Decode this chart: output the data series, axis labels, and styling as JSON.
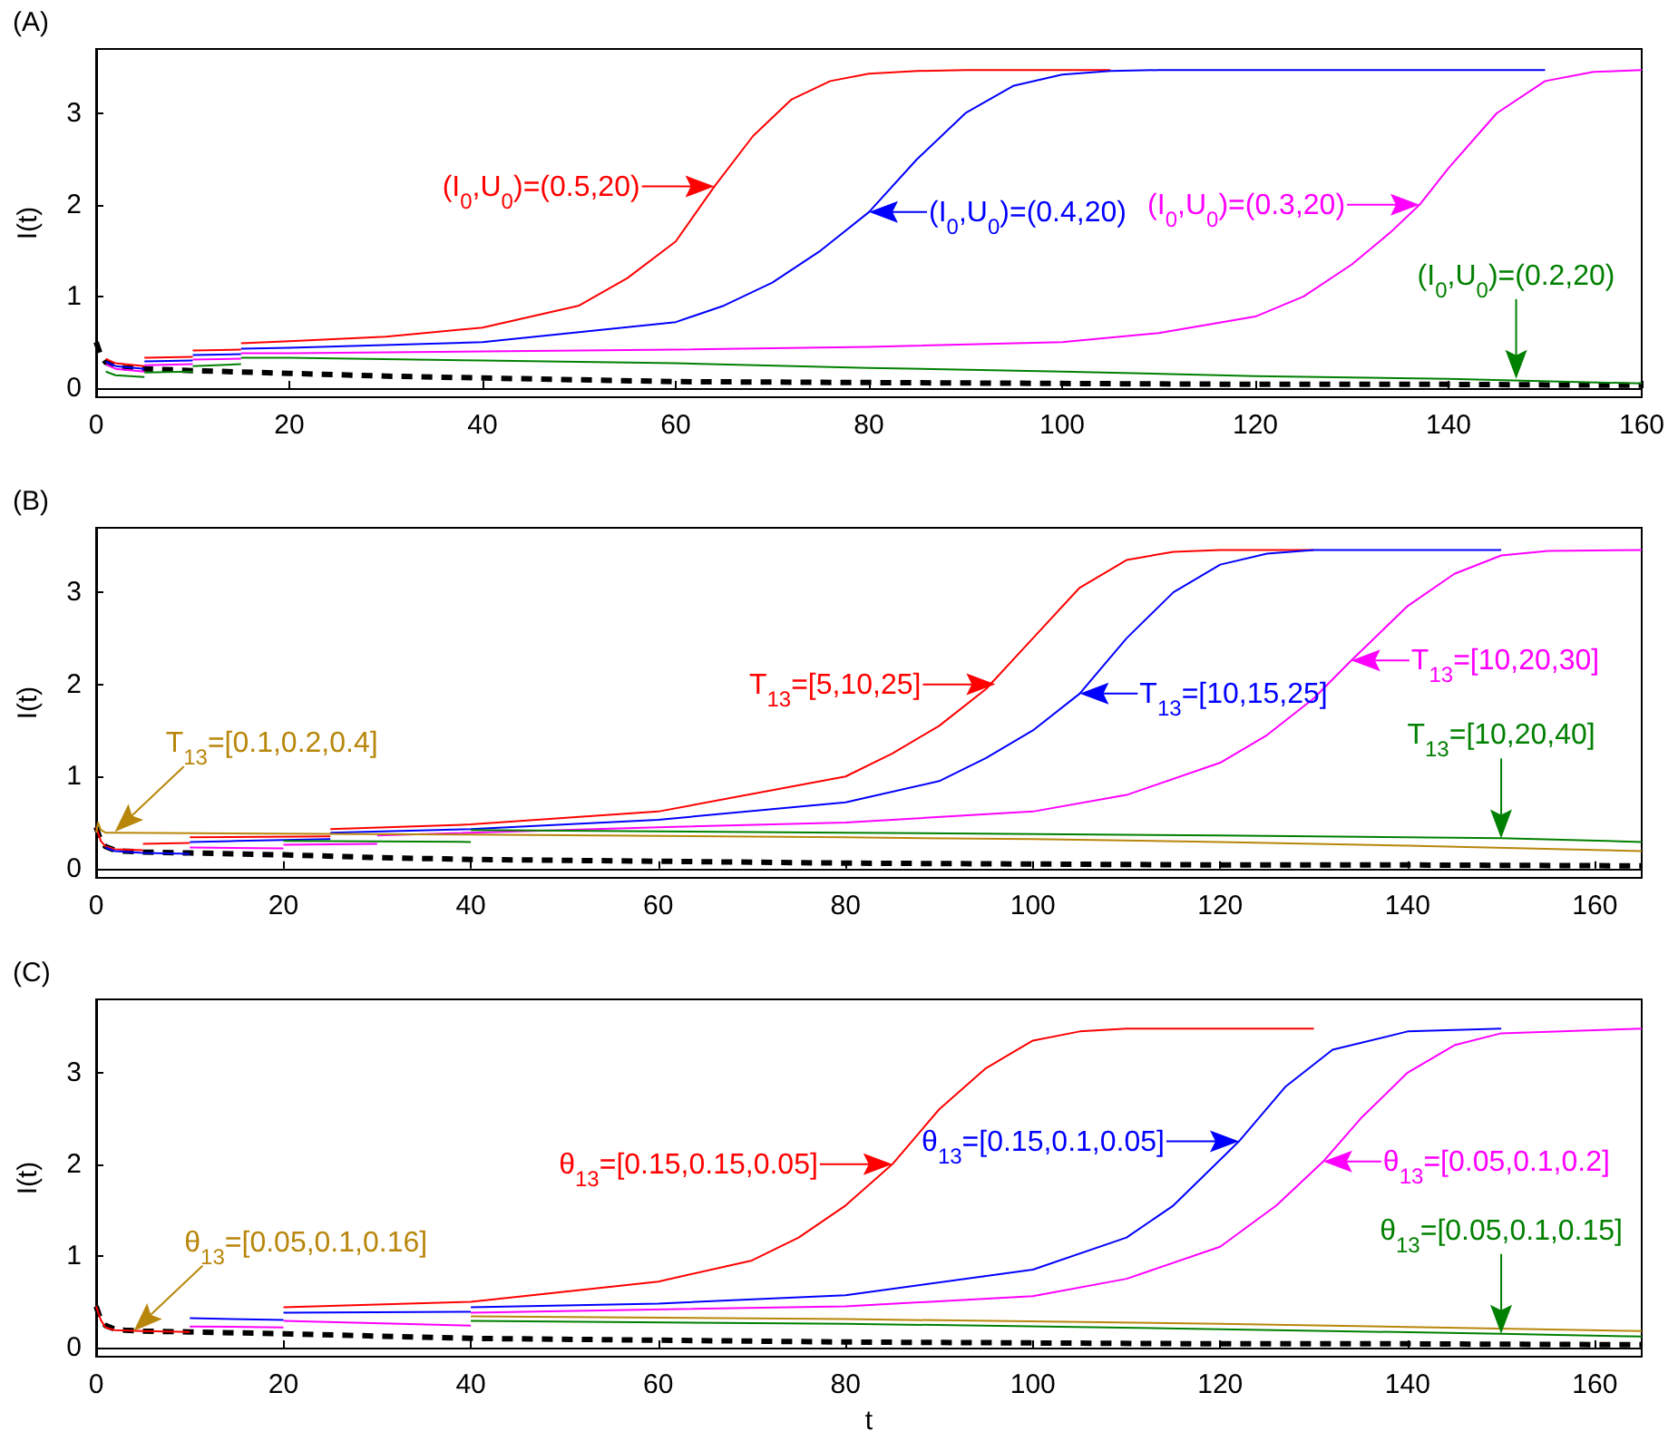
{
  "chart_data": [
    {
      "type": "line",
      "title": "(A)",
      "ylabel": "I(t)",
      "xlim": [
        0,
        160
      ],
      "ylim": [
        -0.1,
        3.7
      ],
      "xticks": [
        0,
        20,
        40,
        60,
        80,
        100,
        120,
        140,
        160
      ],
      "yticks": [
        0,
        1,
        2,
        3
      ],
      "series": [
        {
          "color": "#000000",
          "line_style": "dashed",
          "x": [
            0,
            0.5,
            1,
            2,
            3,
            5,
            10,
            20,
            30,
            40,
            50,
            60,
            80,
            100,
            120,
            140,
            160
          ],
          "values": [
            0.5,
            0.35,
            0.28,
            0.24,
            0.22,
            0.21,
            0.19,
            0.16,
            0.13,
            0.11,
            0.09,
            0.07,
            0.06,
            0.05,
            0.04,
            0.04,
            0.03
          ]
        },
        {
          "color": "#ff0000",
          "x": [
            1,
            2,
            5
          ],
          "values": [
            0.32,
            0.27,
            0.24
          ]
        },
        {
          "color": "#ff0000",
          "x": [
            5,
            10
          ],
          "values": [
            0.33,
            0.34
          ]
        },
        {
          "color": "#ff0000",
          "x": [
            10,
            15
          ],
          "values": [
            0.41,
            0.42
          ]
        },
        {
          "color": "#ff0000",
          "x": [
            15,
            20,
            30,
            40,
            50,
            55,
            60,
            64,
            68,
            72,
            76,
            80,
            85,
            90,
            100,
            105
          ],
          "values": [
            0.49,
            0.51,
            0.56,
            0.66,
            0.9,
            1.2,
            1.6,
            2.2,
            2.75,
            3.15,
            3.35,
            3.43,
            3.46,
            3.47,
            3.47,
            3.47
          ]
        },
        {
          "color": "#0000ff",
          "x": [
            1,
            2,
            5
          ],
          "values": [
            0.29,
            0.24,
            0.21
          ]
        },
        {
          "color": "#0000ff",
          "x": [
            5,
            10
          ],
          "values": [
            0.29,
            0.3
          ]
        },
        {
          "color": "#0000ff",
          "x": [
            10,
            15
          ],
          "values": [
            0.36,
            0.37
          ]
        },
        {
          "color": "#0000ff",
          "x": [
            15,
            20,
            40,
            60,
            65,
            70,
            75,
            80,
            85,
            90,
            95,
            100,
            105,
            110,
            150
          ],
          "values": [
            0.43,
            0.44,
            0.5,
            0.72,
            0.9,
            1.15,
            1.5,
            1.92,
            2.5,
            3.0,
            3.3,
            3.42,
            3.46,
            3.47,
            3.47
          ]
        },
        {
          "color": "#ff00ff",
          "x": [
            1,
            2,
            5
          ],
          "values": [
            0.26,
            0.21,
            0.18
          ]
        },
        {
          "color": "#ff00ff",
          "x": [
            5,
            10
          ],
          "values": [
            0.25,
            0.26
          ]
        },
        {
          "color": "#ff00ff",
          "x": [
            10,
            15
          ],
          "values": [
            0.31,
            0.32
          ]
        },
        {
          "color": "#ff00ff",
          "x": [
            15,
            20,
            40,
            60,
            80,
            100,
            110,
            120,
            125,
            130,
            134,
            137,
            140,
            145,
            150,
            155,
            160
          ],
          "values": [
            0.38,
            0.38,
            0.4,
            0.42,
            0.45,
            0.5,
            0.6,
            0.78,
            1.0,
            1.35,
            1.7,
            2.0,
            2.4,
            3.0,
            3.35,
            3.45,
            3.47
          ]
        },
        {
          "color": "#008000",
          "x": [
            1,
            2,
            5
          ],
          "values": [
            0.18,
            0.14,
            0.12
          ]
        },
        {
          "color": "#008000",
          "x": [
            5,
            10
          ],
          "values": [
            0.17,
            0.18
          ]
        },
        {
          "color": "#008000",
          "x": [
            10,
            15
          ],
          "values": [
            0.24,
            0.26
          ]
        },
        {
          "color": "#008000",
          "x": [
            15,
            20,
            40,
            60,
            80,
            100,
            120,
            140,
            160
          ],
          "values": [
            0.33,
            0.33,
            0.3,
            0.27,
            0.22,
            0.18,
            0.13,
            0.1,
            0.05
          ]
        }
      ],
      "annotations": [
        {
          "text": "(I$_{0}$,U$_{0}$)=(0.5,20)",
          "x": 64,
          "y": 2.2
        },
        {
          "text": "(I$_{0}$,U$_{0}$)=(0.4,20)",
          "x": 80,
          "y": 1.92
        },
        {
          "text": "(I$_{0}$,U$_{0}$)=(0.3,20)",
          "x": 137,
          "y": 2.0
        },
        {
          "text": "(I$_{0}$,U$_{0}$)=(0.2,20)",
          "x": 147,
          "y": 0.1
        }
      ]
    },
    {
      "type": "line",
      "title": "(B)",
      "ylabel": "I(t)",
      "xlim": [
        0,
        165
      ],
      "ylim": [
        -0.1,
        3.7
      ],
      "xticks": [
        0,
        20,
        40,
        60,
        80,
        100,
        120,
        140,
        160
      ],
      "yticks": [
        0,
        1,
        2,
        3
      ],
      "series": [
        {
          "color": "#000000",
          "line_style": "dashed",
          "x": [
            0,
            0.5,
            1,
            2,
            3,
            5,
            10,
            20,
            30,
            40,
            60,
            80,
            100,
            120,
            140,
            165
          ],
          "values": [
            0.45,
            0.3,
            0.24,
            0.2,
            0.19,
            0.18,
            0.17,
            0.15,
            0.12,
            0.1,
            0.08,
            0.06,
            0.05,
            0.04,
            0.04,
            0.03
          ]
        },
        {
          "color": "#ff0000",
          "x": [
            0,
            0.5,
            1,
            2,
            5
          ],
          "values": [
            0.45,
            0.3,
            0.24,
            0.21,
            0.2
          ]
        },
        {
          "color": "#ff0000",
          "x": [
            5,
            10
          ],
          "values": [
            0.27,
            0.28
          ]
        },
        {
          "color": "#ff0000",
          "x": [
            10,
            25
          ],
          "values": [
            0.34,
            0.35
          ]
        },
        {
          "color": "#ff0000",
          "x": [
            25,
            40,
            60,
            80,
            85,
            90,
            95,
            100,
            105,
            110,
            115,
            120,
            130
          ],
          "values": [
            0.43,
            0.48,
            0.62,
            1.0,
            1.25,
            1.55,
            1.95,
            2.5,
            3.05,
            3.35,
            3.44,
            3.46,
            3.46
          ]
        },
        {
          "color": "#0000ff",
          "x": [
            1,
            2,
            5,
            10
          ],
          "values": [
            0.23,
            0.19,
            0.17,
            0.16
          ]
        },
        {
          "color": "#0000ff",
          "x": [
            10,
            15,
            25
          ],
          "values": [
            0.29,
            0.3,
            0.32
          ]
        },
        {
          "color": "#0000ff",
          "x": [
            25,
            40,
            60,
            80,
            90,
            95,
            100,
            105,
            110,
            115,
            120,
            125,
            130,
            150
          ],
          "values": [
            0.39,
            0.43,
            0.53,
            0.72,
            0.95,
            1.2,
            1.5,
            1.9,
            2.5,
            3.0,
            3.3,
            3.42,
            3.46,
            3.46
          ]
        },
        {
          "color": "#ff00ff",
          "x": [
            10,
            20
          ],
          "values": [
            0.23,
            0.22
          ]
        },
        {
          "color": "#ff00ff",
          "x": [
            20,
            30
          ],
          "values": [
            0.26,
            0.27
          ]
        },
        {
          "color": "#ff00ff",
          "x": [
            30,
            60,
            80,
            100,
            110,
            120,
            125,
            130,
            134,
            140,
            145,
            150,
            155,
            165
          ],
          "values": [
            0.36,
            0.45,
            0.5,
            0.62,
            0.8,
            1.15,
            1.45,
            1.85,
            2.26,
            2.85,
            3.2,
            3.4,
            3.45,
            3.46
          ]
        },
        {
          "color": "#008000",
          "x": [
            20,
            40
          ],
          "values": [
            0.3,
            0.29
          ]
        },
        {
          "color": "#008000",
          "x": [
            40,
            80,
            120,
            150,
            165
          ],
          "values": [
            0.42,
            0.39,
            0.36,
            0.33,
            0.29
          ]
        },
        {
          "color": "#b8860b",
          "x": [
            0,
            0.2,
            0.5,
            1,
            2,
            40,
            80,
            100,
            120,
            140,
            165
          ],
          "values": [
            0.39,
            0.5,
            0.42,
            0.39,
            0.39,
            0.37,
            0.34,
            0.32,
            0.29,
            0.25,
            0.19
          ]
        }
      ],
      "annotations": [
        {
          "text": "T$_{13}$=[5,10,25]",
          "x": 96,
          "y": 2.0
        },
        {
          "text": "T$_{13}$=[10,15,25]",
          "x": 105,
          "y": 1.9
        },
        {
          "text": "T$_{13}$=[10,20,30]",
          "x": 134,
          "y": 2.26
        },
        {
          "text": "T$_{13}$=[10,20,40]",
          "x": 150,
          "y": 0.33
        },
        {
          "text": "T$_{13}$=[0.1,0.2,0.4]",
          "x": 2,
          "y": 0.4
        }
      ]
    },
    {
      "type": "line",
      "title": "(C)",
      "ylabel": "I(t)",
      "xlabel": "t",
      "xlim": [
        0,
        165
      ],
      "ylim": [
        -0.1,
        3.8
      ],
      "xticks": [
        0,
        20,
        40,
        60,
        80,
        100,
        120,
        140,
        160
      ],
      "yticks": [
        0,
        1,
        2,
        3
      ],
      "series": [
        {
          "color": "#000000",
          "line_style": "dashed",
          "x": [
            0,
            0.5,
            1,
            2,
            3,
            5,
            10,
            20,
            40,
            60,
            80,
            100,
            120,
            140,
            165
          ],
          "values": [
            0.45,
            0.3,
            0.24,
            0.2,
            0.19,
            0.18,
            0.17,
            0.15,
            0.1,
            0.08,
            0.06,
            0.05,
            0.04,
            0.04,
            0.03
          ]
        },
        {
          "color": "#ff0000",
          "x": [
            0,
            0.5,
            1,
            2,
            5,
            10
          ],
          "values": [
            0.45,
            0.3,
            0.22,
            0.19,
            0.18,
            0.17
          ]
        },
        {
          "color": "#ff0000",
          "x": [
            20,
            40,
            60,
            70,
            75,
            80,
            85,
            90,
            95,
            100,
            105,
            110,
            130
          ],
          "values": [
            0.44,
            0.5,
            0.72,
            0.95,
            1.2,
            1.55,
            2.0,
            2.6,
            3.05,
            3.35,
            3.45,
            3.48,
            3.48
          ]
        },
        {
          "color": "#0000ff",
          "x": [
            10,
            20
          ],
          "values": [
            0.32,
            0.3
          ]
        },
        {
          "color": "#0000ff",
          "x": [
            20,
            40
          ],
          "values": [
            0.38,
            0.39
          ]
        },
        {
          "color": "#0000ff",
          "x": [
            40,
            60,
            80,
            100,
            110,
            115,
            118,
            122,
            127,
            132,
            140,
            150
          ],
          "values": [
            0.44,
            0.48,
            0.57,
            0.85,
            1.2,
            1.55,
            1.85,
            2.25,
            2.85,
            3.25,
            3.45,
            3.48
          ]
        },
        {
          "color": "#ff00ff",
          "x": [
            10,
            20
          ],
          "values": [
            0.23,
            0.22
          ]
        },
        {
          "color": "#ff00ff",
          "x": [
            20,
            40
          ],
          "values": [
            0.29,
            0.24
          ]
        },
        {
          "color": "#ff00ff",
          "x": [
            40,
            80,
            100,
            110,
            120,
            126,
            131,
            135,
            140,
            145,
            150,
            165
          ],
          "values": [
            0.38,
            0.45,
            0.56,
            0.75,
            1.1,
            1.55,
            2.03,
            2.5,
            3.0,
            3.3,
            3.43,
            3.48
          ]
        },
        {
          "color": "#008000",
          "x": [
            40,
            80,
            120,
            150,
            165
          ],
          "values": [
            0.29,
            0.26,
            0.2,
            0.15,
            0.12
          ]
        },
        {
          "color": "#b8860b",
          "x": [
            40,
            80,
            120,
            165
          ],
          "values": [
            0.34,
            0.31,
            0.26,
            0.18
          ]
        }
      ],
      "annotations": [
        {
          "text": "θ$_{13}$=[0.15,0.15,0.05]",
          "x": 85,
          "y": 2.0
        },
        {
          "text": "θ$_{13}$=[0.15,0.1,0.05]",
          "x": 122,
          "y": 2.25
        },
        {
          "text": "θ$_{13}$=[0.05,0.1,0.2]",
          "x": 131,
          "y": 2.03
        },
        {
          "text": "θ$_{13}$=[0.05,0.1,0.15]",
          "x": 150,
          "y": 0.15
        },
        {
          "text": "θ$_{13}$=[0.05,0.1,0.16]",
          "x": 4,
          "y": 0.18
        }
      ]
    }
  ]
}
